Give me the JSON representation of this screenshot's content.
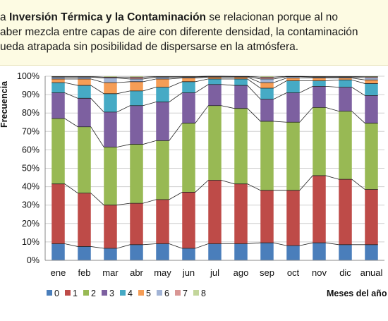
{
  "banner": {
    "line1_a": "a ",
    "line1_bold": "Inversión Térmica y la Contaminación",
    "line1_b": " se relacionan porque al no",
    "line2": "aber mezcla entre capas de aire con diferente densidad, la contaminación",
    "line3": "ueda atrapada sin posibilidad de dispersarse en la atmósfera."
  },
  "chart_data": {
    "type": "bar",
    "stacked": true,
    "ylabel": "Frecuencia",
    "xlabel": "Meses del año",
    "ylim": [
      0,
      100
    ],
    "yticks": [
      "0%",
      "10%",
      "20%",
      "30%",
      "40%",
      "50%",
      "60%",
      "70%",
      "80%",
      "90%",
      "100%"
    ],
    "grid": true,
    "legend_position": "bottom",
    "categories": [
      "ene",
      "feb",
      "mar",
      "abr",
      "may",
      "jun",
      "jul",
      "ago",
      "sep",
      "oct",
      "nov",
      "dic",
      "anual"
    ],
    "series": [
      {
        "name": "0",
        "color": "#4a7ebb",
        "values": [
          9,
          7.5,
          6.5,
          8.5,
          9,
          6.5,
          9,
          9,
          9.5,
          8,
          9.5,
          8.5,
          8.5
        ]
      },
      {
        "name": "1",
        "color": "#be4b48",
        "values": [
          32.5,
          29,
          23.5,
          22.5,
          24,
          30.5,
          34.5,
          32.5,
          28.5,
          30,
          36.5,
          35.5,
          30
        ]
      },
      {
        "name": "2",
        "color": "#98b954",
        "values": [
          35.5,
          36,
          31.5,
          32,
          32,
          37.5,
          40.5,
          41,
          37.5,
          37,
          37,
          37,
          36
        ]
      },
      {
        "name": "3",
        "color": "#7d60a0",
        "values": [
          14,
          15.5,
          19,
          21,
          21,
          16.5,
          11.5,
          12.5,
          12,
          16,
          11.5,
          13,
          15
        ]
      },
      {
        "name": "4",
        "color": "#46aac5",
        "values": [
          5.5,
          7,
          10,
          8,
          8,
          6,
          3,
          3.5,
          6,
          6.5,
          3,
          4,
          6.5
        ]
      },
      {
        "name": "5",
        "color": "#f59d56",
        "values": [
          2,
          3.5,
          6,
          5,
          4.5,
          2,
          1,
          1,
          3,
          1.5,
          1.5,
          1,
          2
        ]
      },
      {
        "name": "6",
        "color": "#a2b4d6",
        "values": [
          1,
          1,
          2.5,
          1.5,
          1,
          0.5,
          0.3,
          0.3,
          2,
          0.7,
          0.5,
          0.5,
          1.2
        ]
      },
      {
        "name": "7",
        "color": "#d99694",
        "values": [
          0.3,
          0.3,
          0.5,
          1,
          0.3,
          0.3,
          0.2,
          0.1,
          1,
          0.2,
          0.3,
          0.3,
          0.5
        ]
      },
      {
        "name": "8",
        "color": "#c3d69b",
        "values": [
          0.2,
          0.2,
          0.5,
          0.5,
          0.2,
          0.2,
          0,
          0.1,
          0.5,
          0.1,
          0.2,
          0.2,
          0.3
        ]
      }
    ]
  }
}
